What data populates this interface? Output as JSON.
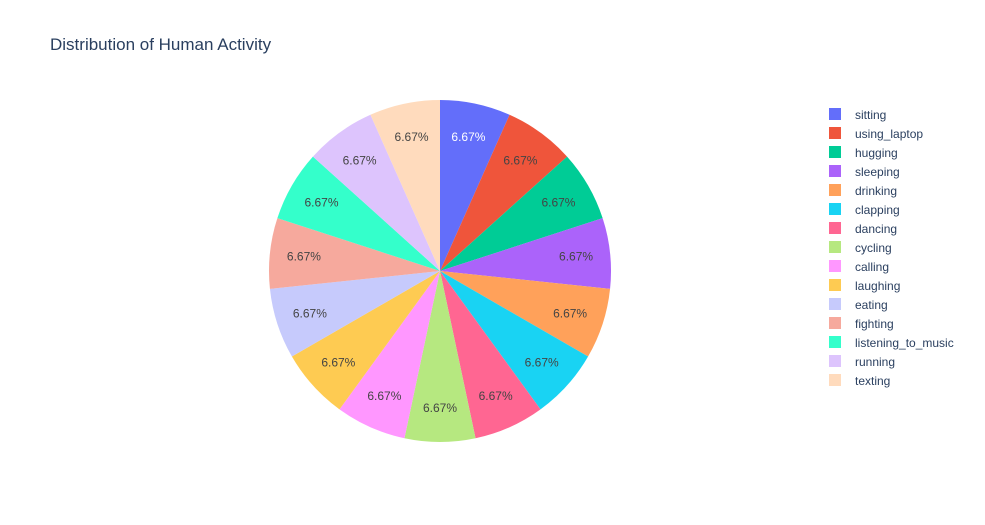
{
  "chart_data": {
    "type": "pie",
    "title": "Distribution of Human Activity",
    "start_angle_deg": 90,
    "direction": "clockwise",
    "legend_position": "right",
    "labels": [
      "sitting",
      "using_laptop",
      "hugging",
      "sleeping",
      "drinking",
      "clapping",
      "dancing",
      "cycling",
      "calling",
      "laughing",
      "eating",
      "fighting",
      "listening_to_music",
      "running",
      "texting"
    ],
    "values": [
      1,
      1,
      1,
      1,
      1,
      1,
      1,
      1,
      1,
      1,
      1,
      1,
      1,
      1,
      1
    ],
    "percent_labels": [
      "6.67%",
      "6.67%",
      "6.67%",
      "6.67%",
      "6.67%",
      "6.67%",
      "6.67%",
      "6.67%",
      "6.67%",
      "6.67%",
      "6.67%",
      "6.67%",
      "6.67%",
      "6.67%",
      "6.67%"
    ],
    "colors": [
      "#636efa",
      "#EF553B",
      "#00cc96",
      "#ab63fa",
      "#FFA15A",
      "#19d3f3",
      "#FF6692",
      "#B6E880",
      "#FF97FF",
      "#FECB52",
      "#c6cafc",
      "#f6a99d",
      "#34ffcb",
      "#ddc4fd",
      "#ffdbbd"
    ],
    "label_text_colors": [
      "#ffffff",
      "#444444",
      "#444444",
      "#444444",
      "#444444",
      "#444444",
      "#444444",
      "#444444",
      "#444444",
      "#444444",
      "#444444",
      "#444444",
      "#444444",
      "#444444",
      "#444444"
    ]
  }
}
